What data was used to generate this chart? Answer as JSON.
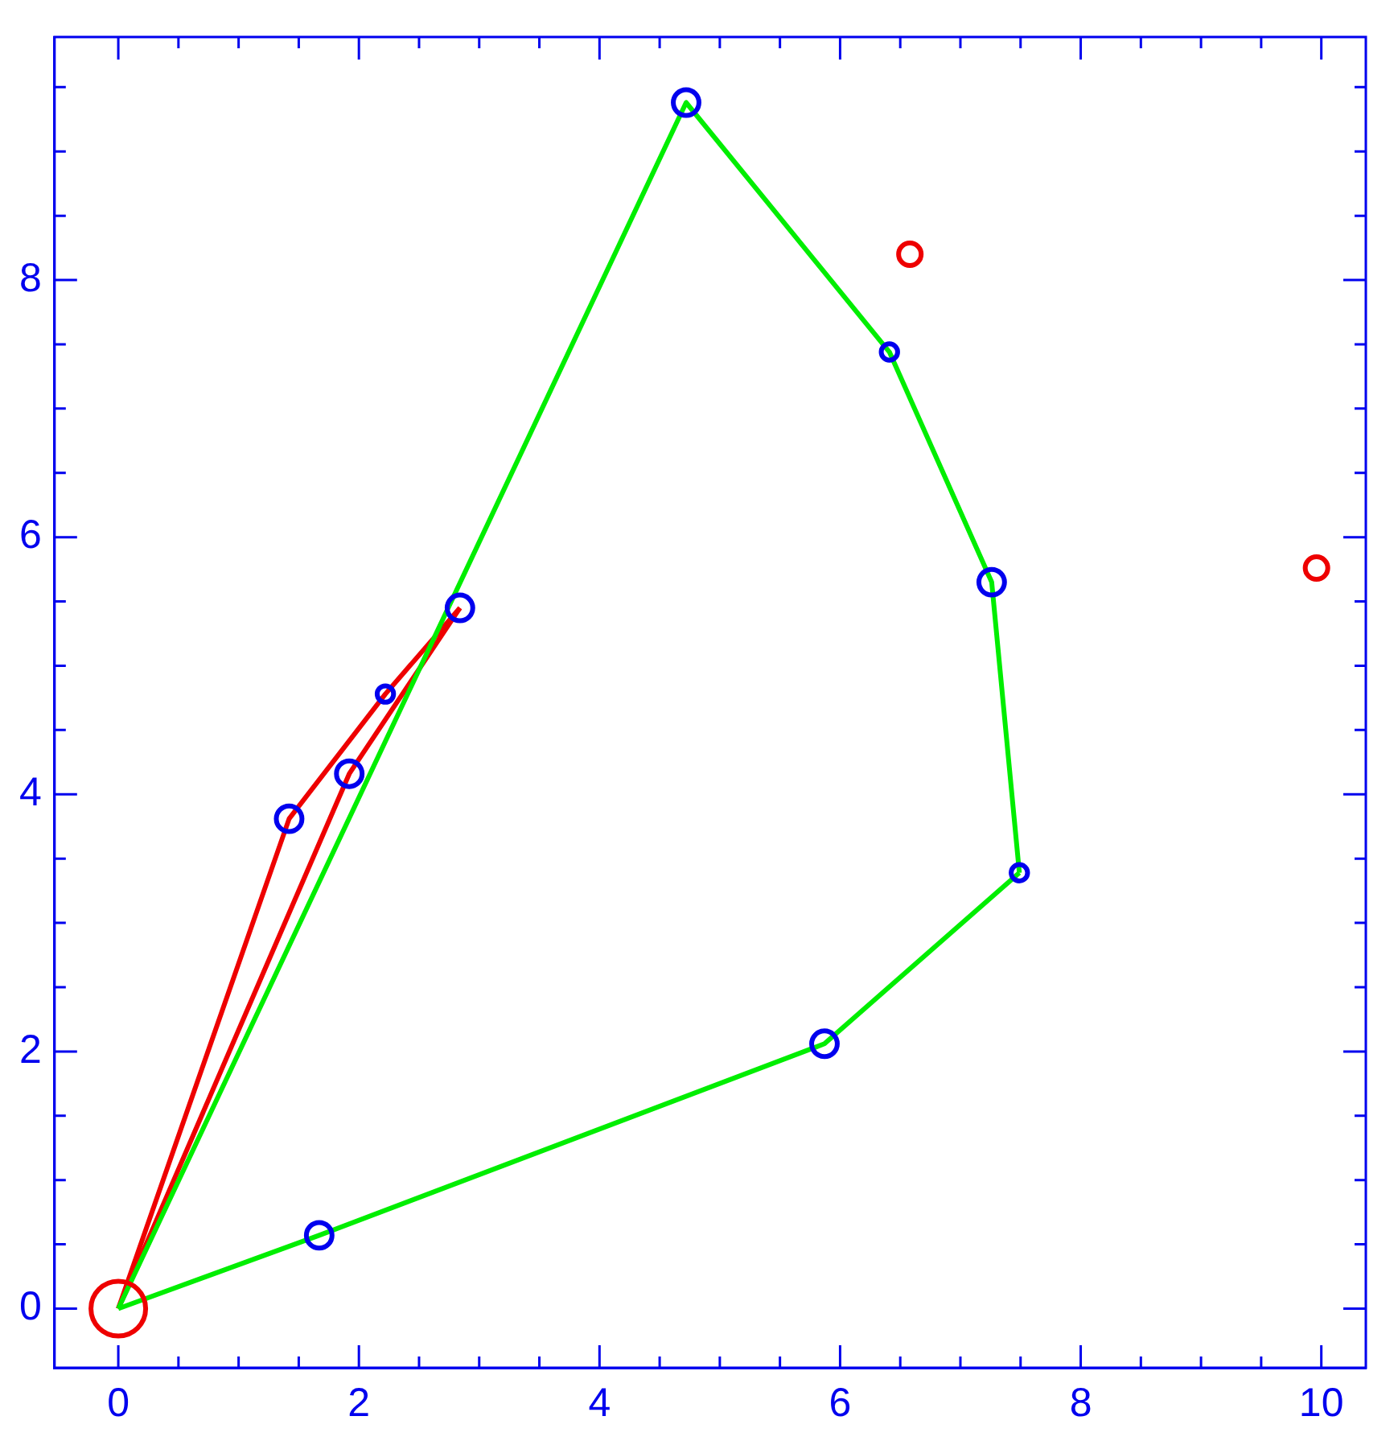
{
  "chart_data": {
    "type": "scatter",
    "xlim": [
      -0.53,
      10.37
    ],
    "ylim": [
      -0.46,
      9.89
    ],
    "xticks": [
      0,
      {
        "value": 0.5,
        "label": null
      },
      {
        "value": 1,
        "label": null
      },
      {
        "value": 1.5,
        "label": null
      },
      2,
      {
        "value": 2.5,
        "label": null
      },
      {
        "value": 3,
        "label": null
      },
      {
        "value": 3.5,
        "label": null
      },
      4,
      {
        "value": 4.5,
        "label": null
      },
      {
        "value": 5,
        "label": null
      },
      {
        "value": 5.5,
        "label": null
      },
      6,
      {
        "value": 6.5,
        "label": null
      },
      {
        "value": 7,
        "label": null
      },
      {
        "value": 7.5,
        "label": null
      },
      8,
      {
        "value": 8.5,
        "label": null
      },
      {
        "value": 9,
        "label": null
      },
      {
        "value": 9.5,
        "label": null
      },
      10
    ],
    "yticks": [
      0,
      {
        "value": 0.5,
        "label": null
      },
      {
        "value": 1,
        "label": null
      },
      {
        "value": 1.5,
        "label": null
      },
      2,
      {
        "value": 2.5,
        "label": null
      },
      {
        "value": 3,
        "label": null
      },
      {
        "value": 3.5,
        "label": null
      },
      4,
      {
        "value": 4.5,
        "label": null
      },
      {
        "value": 5,
        "label": null
      },
      {
        "value": 5.5,
        "label": null
      },
      6,
      {
        "value": 6.5,
        "label": null
      },
      {
        "value": 7,
        "label": null
      },
      {
        "value": 7.5,
        "label": null
      },
      8,
      {
        "value": 8.5,
        "label": null
      },
      {
        "value": 9,
        "label": null
      },
      {
        "value": 9.5,
        "label": null
      }
    ],
    "grid": false,
    "legend": false,
    "series": [
      {
        "type": "line",
        "marker": "none",
        "color": "#00ee00",
        "x": [
          0,
          1.67,
          5.87,
          7.49
        ],
        "values": [
          0,
          0.57,
          2.06,
          3.39
        ]
      },
      {
        "type": "line",
        "marker": "none",
        "color": "#00ee00",
        "x": [
          7.49,
          7.26,
          6.41,
          4.72,
          0
        ],
        "values": [
          3.39,
          5.65,
          7.44,
          9.38,
          0
        ]
      },
      {
        "type": "line",
        "marker": "none",
        "color": "#ee0000",
        "x": [
          0,
          1.42,
          2.22,
          2.84
        ],
        "values": [
          0,
          3.81,
          4.78,
          5.45
        ]
      },
      {
        "type": "line",
        "marker": "none",
        "color": "#ee0000",
        "x": [
          2.84,
          1.92,
          0
        ],
        "values": [
          5.45,
          4.16,
          0
        ]
      },
      {
        "type": "bubble",
        "marker": "circle",
        "color": "#0000ee",
        "x": [
          1.67,
          5.87,
          7.49,
          7.26,
          6.41,
          4.72,
          2.84,
          2.22,
          1.92,
          1.42
        ],
        "values": [
          0.57,
          2.06,
          3.39,
          5.65,
          7.44,
          9.38,
          5.45,
          4.78,
          4.16,
          3.81
        ],
        "sizes": [
          0.22,
          0.22,
          0.09,
          0.22,
          0.09,
          0.22,
          0.22,
          0.09,
          0.22,
          0.22
        ]
      },
      {
        "type": "bubble",
        "marker": "circle",
        "color": "#ee0000",
        "x": [
          0,
          6.58,
          9.96
        ],
        "values": [
          0,
          8.2,
          5.76
        ],
        "sizes": [
          1,
          0.17,
          0.17
        ]
      }
    ]
  }
}
